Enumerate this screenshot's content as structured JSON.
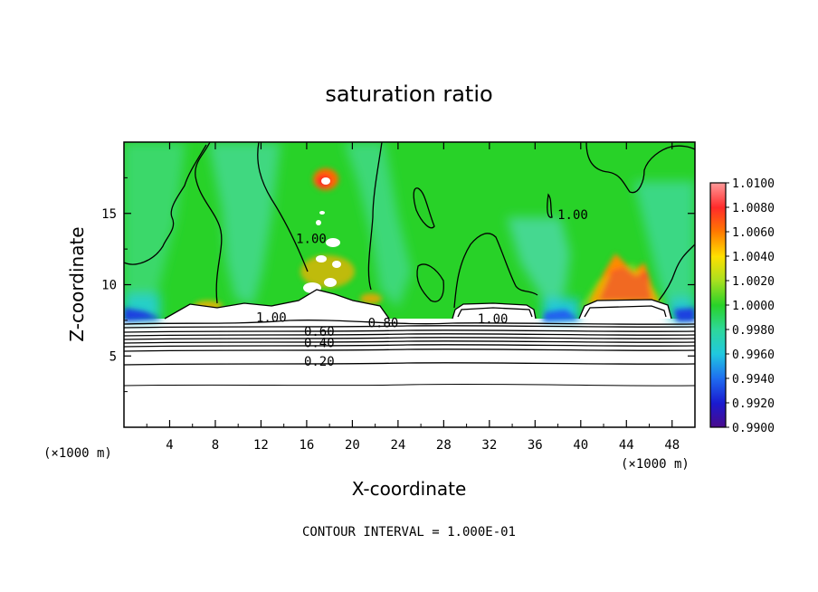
{
  "chart_data": {
    "type": "heatmap",
    "title": "saturation ratio",
    "xlabel": "X-coordinate",
    "ylabel": "Z-coordinate",
    "x_unit_label": "(×1000 m)",
    "y_unit_label": "(×1000 m)",
    "xlim": [
      0,
      50
    ],
    "ylim": [
      0,
      20
    ],
    "x_ticks": [
      4,
      8,
      12,
      16,
      20,
      24,
      28,
      32,
      36,
      40,
      44,
      48
    ],
    "y_ticks": [
      5,
      10,
      15
    ],
    "colorbar": {
      "min": 0.99,
      "max": 1.01,
      "labels": [
        "1.0100",
        "1.0080",
        "1.0060",
        "1.0040",
        "1.0020",
        "1.0000",
        "0.9980",
        "0.9960",
        "0.9940",
        "0.9920",
        "0.9900"
      ],
      "colors": [
        "#ff9a9a",
        "#ff2a2a",
        "#ff7a00",
        "#ffe000",
        "#a8e020",
        "#28d228",
        "#2ed89a",
        "#20c8e0",
        "#1e6cf0",
        "#1a1ad0",
        "#4a0a8a"
      ]
    },
    "contour_labels": [
      {
        "text": "0.20",
        "x": 17.1,
        "z": 4.5
      },
      {
        "text": "0.40",
        "x": 17.1,
        "z": 5.8
      },
      {
        "text": "0.60",
        "x": 17.1,
        "z": 6.6
      },
      {
        "text": "0.80",
        "x": 22.7,
        "z": 7.2
      },
      {
        "text": "1.00",
        "x": 12.9,
        "z": 7.6
      },
      {
        "text": "1.00",
        "x": 32.3,
        "z": 7.5
      },
      {
        "text": "1.00",
        "x": 16.4,
        "z": 13.1
      },
      {
        "text": "1.00",
        "x": 39.3,
        "z": 14.8
      }
    ],
    "footer": "CONTOUR INTERVAL = 1.000E-01"
  }
}
